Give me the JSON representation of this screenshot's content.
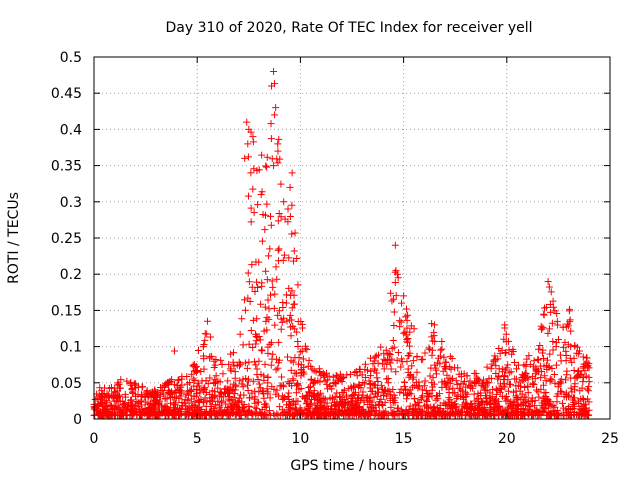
{
  "chart_data": {
    "type": "scatter",
    "title": "Day 310 of 2020, Rate Of TEC Index for receiver yell",
    "xlabel": "GPS time / hours",
    "ylabel": "ROTI / TECUs",
    "xlim": [
      0,
      25
    ],
    "ylim": [
      0,
      0.5
    ],
    "x_ticks": [
      "0",
      "5",
      "10",
      "15",
      "20",
      "25"
    ],
    "y_ticks": [
      "0",
      "0.05",
      "0.1",
      "0.15",
      "0.2",
      "0.25",
      "0.3",
      "0.35",
      "0.4",
      "0.45",
      "0.5"
    ],
    "grid": true,
    "marker": "plus",
    "color": "#ff0000",
    "x_range_of_data": [
      0,
      24
    ],
    "envelope": [
      {
        "x": 0.0,
        "y": 0.03
      },
      {
        "x": 0.3,
        "y": 0.045
      },
      {
        "x": 1.0,
        "y": 0.045
      },
      {
        "x": 1.2,
        "y": 0.06
      },
      {
        "x": 2.0,
        "y": 0.05
      },
      {
        "x": 3.0,
        "y": 0.04
      },
      {
        "x": 4.0,
        "y": 0.06
      },
      {
        "x": 4.5,
        "y": 0.06
      },
      {
        "x": 5.0,
        "y": 0.09
      },
      {
        "x": 5.5,
        "y": 0.13
      },
      {
        "x": 6.0,
        "y": 0.08
      },
      {
        "x": 7.0,
        "y": 0.1
      },
      {
        "x": 7.5,
        "y": 0.41
      },
      {
        "x": 8.0,
        "y": 0.35
      },
      {
        "x": 8.7,
        "y": 0.48
      },
      {
        "x": 9.2,
        "y": 0.3
      },
      {
        "x": 9.6,
        "y": 0.33
      },
      {
        "x": 10.0,
        "y": 0.15
      },
      {
        "x": 10.5,
        "y": 0.08
      },
      {
        "x": 11.5,
        "y": 0.06
      },
      {
        "x": 13.0,
        "y": 0.07
      },
      {
        "x": 14.0,
        "y": 0.12
      },
      {
        "x": 14.6,
        "y": 0.24
      },
      {
        "x": 15.2,
        "y": 0.16
      },
      {
        "x": 15.8,
        "y": 0.1
      },
      {
        "x": 16.5,
        "y": 0.14
      },
      {
        "x": 17.0,
        "y": 0.1
      },
      {
        "x": 18.0,
        "y": 0.06
      },
      {
        "x": 19.0,
        "y": 0.07
      },
      {
        "x": 19.9,
        "y": 0.13
      },
      {
        "x": 20.5,
        "y": 0.08
      },
      {
        "x": 21.5,
        "y": 0.1
      },
      {
        "x": 22.0,
        "y": 0.19
      },
      {
        "x": 22.5,
        "y": 0.15
      },
      {
        "x": 23.0,
        "y": 0.16
      },
      {
        "x": 23.5,
        "y": 0.1
      },
      {
        "x": 24.0,
        "y": 0.08
      }
    ],
    "outliers": [
      {
        "x": 8.7,
        "y": 0.48
      },
      {
        "x": 8.6,
        "y": 0.46
      },
      {
        "x": 8.8,
        "y": 0.43
      },
      {
        "x": 8.75,
        "y": 0.42
      },
      {
        "x": 7.4,
        "y": 0.41
      },
      {
        "x": 7.5,
        "y": 0.4
      },
      {
        "x": 7.7,
        "y": 0.39
      },
      {
        "x": 7.45,
        "y": 0.38
      },
      {
        "x": 8.9,
        "y": 0.38
      },
      {
        "x": 7.3,
        "y": 0.36
      },
      {
        "x": 8.7,
        "y": 0.35
      },
      {
        "x": 7.6,
        "y": 0.34
      },
      {
        "x": 9.6,
        "y": 0.34
      },
      {
        "x": 9.5,
        "y": 0.32
      },
      {
        "x": 8.1,
        "y": 0.31
      },
      {
        "x": 9.4,
        "y": 0.29
      },
      {
        "x": 14.6,
        "y": 0.24
      },
      {
        "x": 14.7,
        "y": 0.2
      },
      {
        "x": 22.0,
        "y": 0.19
      },
      {
        "x": 15.0,
        "y": 0.17
      },
      {
        "x": 14.9,
        "y": 0.16
      },
      {
        "x": 5.5,
        "y": 0.135
      },
      {
        "x": 16.5,
        "y": 0.13
      },
      {
        "x": 19.9,
        "y": 0.13
      },
      {
        "x": 3.9,
        "y": 0.094
      },
      {
        "x": 5.3,
        "y": 0.1
      }
    ]
  }
}
